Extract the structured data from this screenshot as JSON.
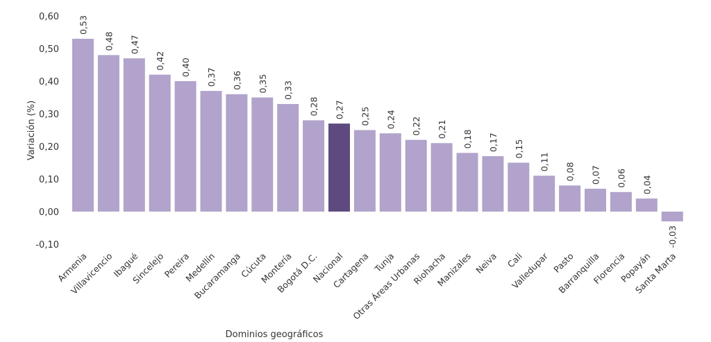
{
  "chart_data": {
    "type": "bar",
    "title": "",
    "xlabel": "Dominios geográficos",
    "ylabel": "Variación (%)",
    "ylim": [
      -0.1,
      0.6
    ],
    "yticks": [
      "-0,10",
      "0,00",
      "0,10",
      "0,20",
      "0,30",
      "0,40",
      "0,50",
      "0,60"
    ],
    "ytick_values": [
      -0.1,
      0,
      0.1,
      0.2,
      0.3,
      0.4,
      0.5,
      0.6
    ],
    "grid": false,
    "categories": [
      "Armenia",
      "Villavicencio",
      "Ibagué",
      "Sincelejo",
      "Pereira",
      "Medellín",
      "Bucaramanga",
      "Cúcuta",
      "Montería",
      "Bogotá D.C.",
      "Nacional",
      "Cartagena",
      "Tunja",
      "Otras Áreas Urbanas",
      "Riohacha",
      "Manizales",
      "Neiva",
      "Cali",
      "Valledupar",
      "Pasto",
      "Barranquilla",
      "Florencia",
      "Popayán",
      "Santa Marta"
    ],
    "values": [
      0.53,
      0.48,
      0.47,
      0.42,
      0.4,
      0.37,
      0.36,
      0.35,
      0.33,
      0.28,
      0.27,
      0.25,
      0.24,
      0.22,
      0.21,
      0.18,
      0.17,
      0.15,
      0.11,
      0.08,
      0.07,
      0.06,
      0.04,
      -0.03
    ],
    "labels": [
      "0,53",
      "0,48",
      "0,47",
      "0,42",
      "0,40",
      "0,37",
      "0,36",
      "0,35",
      "0,33",
      "0,28",
      "0,27",
      "0,25",
      "0,24",
      "0,22",
      "0,21",
      "0,18",
      "0,17",
      "0,15",
      "0,11",
      "0,08",
      "0,07",
      "0,06",
      "0,04",
      "-0,03"
    ],
    "highlight": "Nacional",
    "colors": {
      "bar": "#b1a3cb",
      "highlight": "#5f4a80"
    }
  }
}
